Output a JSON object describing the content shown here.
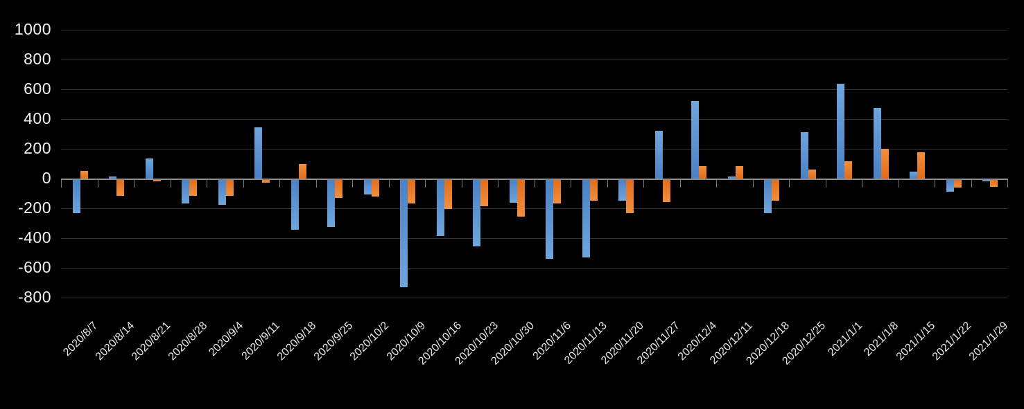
{
  "chart_data": {
    "type": "bar",
    "title": "",
    "legend": "none",
    "grid": true,
    "background": "#000000",
    "axis_color": "#8f8f8f",
    "tick_color": "#7a7a7a",
    "gridline_color": "#343434",
    "y_label_color": "#f2f2f2",
    "x_label_color": "#e8e8e8",
    "ylim": [
      -800,
      1000
    ],
    "ytick_step": 200,
    "categories": [
      "2020/8/7",
      "2020/8/14",
      "2020/8/21",
      "2020/8/28",
      "2020/9/4",
      "2020/9/11",
      "2020/9/18",
      "2020/9/25",
      "2020/10/2",
      "2020/10/9",
      "2020/10/16",
      "2020/10/23",
      "2020/10/30",
      "2020/11/6",
      "2020/11/13",
      "2020/11/20",
      "2020/11/27",
      "2020/12/4",
      "2020/12/11",
      "2020/12/18",
      "2020/12/25",
      "2021/1/1",
      "2021/1/8",
      "2021/1/15",
      "2021/1/22",
      "2021/1/29"
    ],
    "series": [
      {
        "name": "blue",
        "color": "#5b9bd5",
        "gradient_far": "#6fa6db",
        "gradient_near": "#4a81c4",
        "values": [
          -230,
          15,
          135,
          -165,
          -170,
          345,
          -340,
          -320,
          -100,
          -725,
          -380,
          -450,
          -160,
          -535,
          -525,
          -145,
          320,
          520,
          15,
          -230,
          310,
          635,
          475,
          45,
          -85,
          -15
        ]
      },
      {
        "name": "orange",
        "color": "#ed7d31",
        "gradient_far": "#f1903e",
        "gradient_near": "#e06c1d",
        "values": [
          50,
          -110,
          -15,
          -110,
          -110,
          -25,
          100,
          -125,
          -115,
          -165,
          -200,
          -180,
          -250,
          -165,
          -145,
          -230,
          -155,
          85,
          85,
          -145,
          60,
          115,
          200,
          175,
          -55,
          -50
        ]
      }
    ]
  }
}
